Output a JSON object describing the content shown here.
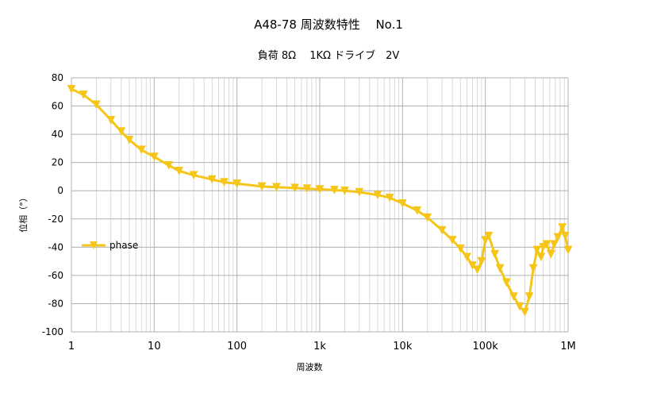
{
  "chart_data": {
    "type": "line",
    "title": "A48-78  周波数特性　 No.1",
    "subtitle": "負荷 8Ω　  1KΩ ドライブ　2V",
    "xlabel": "周波数",
    "ylabel": "位相（°）",
    "x_scale": "log",
    "xlim": [
      1,
      1000000
    ],
    "ylim": [
      -100,
      80
    ],
    "x_ticks": [
      {
        "value": 1,
        "label": "1"
      },
      {
        "value": 10,
        "label": "10"
      },
      {
        "value": 100,
        "label": "100"
      },
      {
        "value": 1000,
        "label": "1k"
      },
      {
        "value": 10000,
        "label": "10k"
      },
      {
        "value": 100000,
        "label": "100k"
      },
      {
        "value": 1000000,
        "label": "1M"
      }
    ],
    "y_ticks": [
      80,
      60,
      40,
      20,
      0,
      -20,
      -40,
      -60,
      -80,
      -100
    ],
    "grid": true,
    "legend": "left",
    "series": [
      {
        "name": "phase",
        "color": "#f5c518",
        "marker": "triangle-down",
        "points": [
          [
            1,
            72
          ],
          [
            1.4,
            68
          ],
          [
            2,
            61
          ],
          [
            3,
            50
          ],
          [
            4,
            42
          ],
          [
            5,
            36
          ],
          [
            7,
            29
          ],
          [
            10,
            24
          ],
          [
            15,
            18
          ],
          [
            20,
            14
          ],
          [
            30,
            11
          ],
          [
            50,
            8
          ],
          [
            70,
            6
          ],
          [
            100,
            5
          ],
          [
            200,
            3
          ],
          [
            300,
            2.5
          ],
          [
            500,
            2
          ],
          [
            700,
            1.5
          ],
          [
            1000,
            1
          ],
          [
            1500,
            0.5
          ],
          [
            2000,
            0
          ],
          [
            3000,
            -1
          ],
          [
            5000,
            -3
          ],
          [
            7000,
            -5
          ],
          [
            10000,
            -9
          ],
          [
            15000,
            -14
          ],
          [
            20000,
            -19
          ],
          [
            30000,
            -28
          ],
          [
            40000,
            -35
          ],
          [
            50000,
            -41
          ],
          [
            60000,
            -47
          ],
          [
            70000,
            -53
          ],
          [
            80000,
            -56
          ],
          [
            90000,
            -50
          ],
          [
            100000,
            -35
          ],
          [
            110000,
            -32
          ],
          [
            130000,
            -45
          ],
          [
            150000,
            -55
          ],
          [
            180000,
            -65
          ],
          [
            220000,
            -75
          ],
          [
            260000,
            -82
          ],
          [
            300000,
            -86
          ],
          [
            340000,
            -75
          ],
          [
            380000,
            -55
          ],
          [
            420000,
            -42
          ],
          [
            470000,
            -47
          ],
          [
            500000,
            -40
          ],
          [
            550000,
            -38
          ],
          [
            620000,
            -45
          ],
          [
            680000,
            -38
          ],
          [
            750000,
            -33
          ],
          [
            850000,
            -26
          ],
          [
            920000,
            -32
          ],
          [
            1000000,
            -42
          ]
        ]
      }
    ]
  }
}
